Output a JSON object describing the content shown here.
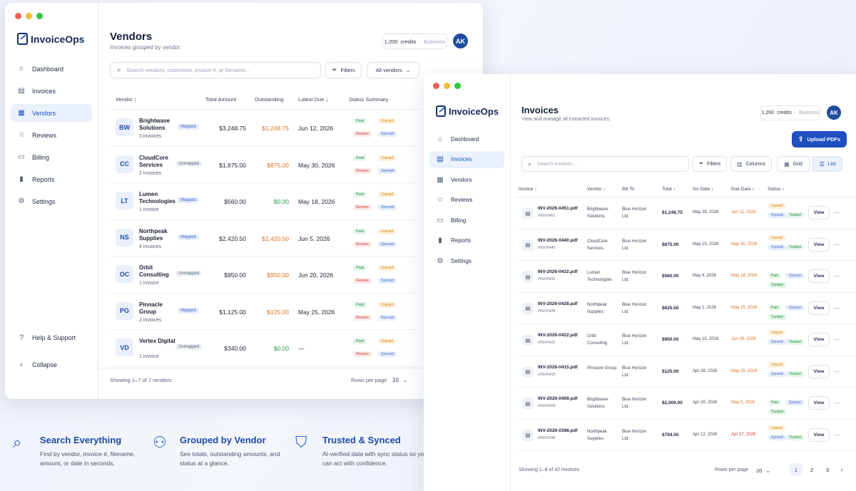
{
  "vendors_window": {
    "app_name": "InvoiceOps",
    "nav": [
      {
        "label": "Dashboard",
        "icon": "dashboard-icon"
      },
      {
        "label": "Invoices",
        "icon": "document-icon"
      },
      {
        "label": "Vendors",
        "icon": "building-icon",
        "active": true
      },
      {
        "label": "Reviews",
        "icon": "star-icon"
      },
      {
        "label": "Billing",
        "icon": "credit-card-icon"
      },
      {
        "label": "Reports",
        "icon": "bar-chart-icon"
      },
      {
        "label": "Settings",
        "icon": "gear-icon"
      }
    ],
    "help_label": "Help & Support",
    "collapse_label": "Collapse",
    "title": "Vendors",
    "subtitle": "Invoices grouped by vendor.",
    "credits": "1,200",
    "credits_unit": "credits",
    "tier": "Business",
    "avatar": "AK",
    "search_placeholder": "Search vendors, customers, invoice #, or filename...",
    "filters_label": "Filters",
    "vendor_filter": "All vendors",
    "columns": [
      "Vendor ↕",
      "Total Amount",
      "Outstanding",
      "Latest Due ↓",
      "Status Summary"
    ],
    "rows": [
      {
        "initials": "BW",
        "name": "Brightwave Solutions",
        "count": "3 invoices",
        "map": "Mapped",
        "total": "$3,248.75",
        "outstanding": "$1,248.75",
        "out_color": "orange",
        "due": "Jun 12, 2026",
        "s1": "Paid",
        "s1c": "paid",
        "s2": "Unpaid",
        "s3": "Review",
        "s4": "Synced"
      },
      {
        "initials": "CC",
        "name": "CloudCore Services",
        "count": "2 invoices",
        "map": "Unmapped",
        "total": "$1,875.00",
        "outstanding": "$875.00",
        "out_color": "orange",
        "due": "May 30, 2026",
        "s1": "Paid",
        "s1c": "paid",
        "s2": "Unpaid",
        "s3": "Review",
        "s4": "Synced"
      },
      {
        "initials": "LT",
        "name": "Lumen Technologies",
        "count": "1 invoice",
        "map": "Mapped",
        "total": "$560.00",
        "outstanding": "$0.00",
        "out_color": "green",
        "due": "May 18, 2026",
        "s1": "Paid",
        "s1c": "paid",
        "s2": "Unpaid",
        "s3": "Review",
        "s4": "Synced"
      },
      {
        "initials": "NS",
        "name": "Northpeak Supplies",
        "count": "4 invoices",
        "map": "Mapped",
        "total": "$2,420.50",
        "outstanding": "$1,420.50",
        "out_color": "orange",
        "due": "Jun 5, 2026",
        "s1": "Paid",
        "s1c": "paid",
        "s2": "Unpaid",
        "s3": "Review",
        "s4": "Synced"
      },
      {
        "initials": "OC",
        "name": "Orbit Consulting",
        "count": "1 invoice",
        "map": "Unmapped",
        "total": "$950.00",
        "outstanding": "$950.00",
        "out_color": "orange",
        "due": "Jun 20, 2026",
        "s1": "Paid",
        "s1c": "paid",
        "s2": "Unpaid",
        "s3": "Review",
        "s4": "Synced"
      },
      {
        "initials": "PG",
        "name": "Pinnacle Group",
        "count": "2 invoices",
        "map": "Mapped",
        "total": "$1,125.00",
        "outstanding": "$125.00",
        "out_color": "orange",
        "due": "May 25, 2026",
        "s1": "Paid",
        "s1c": "paid",
        "s2": "Unpaid",
        "s3": "Review",
        "s4": "Synced"
      },
      {
        "initials": "VD",
        "name": "Vertex Digital",
        "count": "1 invoice",
        "map": "Unmapped",
        "total": "$340.00",
        "outstanding": "$0.00",
        "out_color": "green",
        "due": "—",
        "s1": "Paid",
        "s1c": "paid",
        "s2": "Unpaid",
        "s3": "Review",
        "s4": "Synced"
      }
    ],
    "footer": "Showing 1–7 of 7 vendors",
    "rows_per_page_label": "Rows per page",
    "rows_per_page": "10"
  },
  "invoices_window": {
    "app_name": "InvoiceOps",
    "nav": [
      {
        "label": "Dashboard",
        "icon": "dashboard-icon"
      },
      {
        "label": "Invoices",
        "icon": "document-icon",
        "active": true
      },
      {
        "label": "Vendors",
        "icon": "building-icon"
      },
      {
        "label": "Reviews",
        "icon": "star-icon"
      },
      {
        "label": "Billing",
        "icon": "credit-card-icon"
      },
      {
        "label": "Reports",
        "icon": "bar-chart-icon"
      },
      {
        "label": "Settings",
        "icon": "gear-icon"
      }
    ],
    "title": "Invoices",
    "subtitle": "View and manage all extracted invoices.",
    "credits": "1,200",
    "credits_unit": "credits",
    "tier": "Business",
    "avatar": "AK",
    "upload_label": "Upload PDFs",
    "search_placeholder": "Search invoices...",
    "filters_label": "Filters",
    "columns_label": "Columns",
    "grid_label": "Grid",
    "list_label": "List",
    "columns": [
      "Invoice ↕",
      "Vendor ↕",
      "Bill To",
      "Total ↕",
      "Inv Date ↕",
      "Due Date ↕",
      "Status ↕"
    ],
    "rows": [
      {
        "file": "INV-2026-0451.pdf",
        "num": "#INV0451",
        "vendor": "Brightwave Solutions",
        "bill": "Blue Horizon Ltd.",
        "total": "$1,248.75",
        "inv_date": "May 28, 2026",
        "due": "Jun 12, 2026",
        "due_color": "orange",
        "st": [
          [
            "Unpaid",
            "unpaid"
          ],
          [
            "Synced",
            "synced"
          ],
          [
            "Trusted",
            "trusted"
          ]
        ]
      },
      {
        "file": "INV-2026-0440.pdf",
        "num": "#INV0440",
        "vendor": "CloudCore Services",
        "bill": "Blue Horizon Ltd.",
        "total": "$875.00",
        "inv_date": "May 15, 2026",
        "due": "May 30, 2026",
        "due_color": "orange",
        "st": [
          [
            "Unpaid",
            "unpaid"
          ],
          [
            "Synced",
            "synced"
          ],
          [
            "Trusted",
            "trusted"
          ]
        ]
      },
      {
        "file": "INV-2026-0432.pdf",
        "num": "#INV0432",
        "vendor": "Lumen Technologies",
        "bill": "Blue Horizon Ltd.",
        "total": "$560.00",
        "inv_date": "May 4, 2026",
        "due": "May 18, 2026",
        "due_color": "orange",
        "st": [
          [
            "Paid",
            "paid"
          ],
          [
            "Synced",
            "synced"
          ],
          [
            "Trusted",
            "trusted"
          ]
        ]
      },
      {
        "file": "INV-2026-0428.pdf",
        "num": "#INV0428",
        "vendor": "Northpeak Supplies",
        "bill": "Blue Horizon Ltd.",
        "total": "$625.50",
        "inv_date": "May 1, 2026",
        "due": "May 15, 2026",
        "due_color": "orange",
        "st": [
          [
            "Paid",
            "paid"
          ],
          [
            "Synced",
            "synced"
          ],
          [
            "Trusted",
            "trusted"
          ]
        ]
      },
      {
        "file": "INV-2026-0422.pdf",
        "num": "#INV0422",
        "vendor": "Orbit Consulting",
        "bill": "Blue Horizon Ltd.",
        "total": "$950.00",
        "inv_date": "May 10, 2026",
        "due": "Jun 20, 2026",
        "due_color": "orange",
        "st": [
          [
            "Unpaid",
            "unpaid"
          ],
          [
            "Synced",
            "synced"
          ],
          [
            "Trusted",
            "trusted"
          ]
        ]
      },
      {
        "file": "INV-2026-0415.pdf",
        "num": "#INV0415",
        "vendor": "Pinnacle Group",
        "bill": "Blue Horizon Ltd.",
        "total": "$125.00",
        "inv_date": "Apr 28, 2026",
        "due": "May 25, 2026",
        "due_color": "orange",
        "st": [
          [
            "Unpaid",
            "unpaid"
          ],
          [
            "Synced",
            "synced"
          ],
          [
            "Trusted",
            "trusted"
          ]
        ]
      },
      {
        "file": "INV-2026-0409.pdf",
        "num": "#INV0409",
        "vendor": "Brightwave Solutions",
        "bill": "Blue Horizon Ltd.",
        "total": "$2,000.00",
        "inv_date": "Apr 20, 2026",
        "due": "May 5, 2026",
        "due_color": "orange",
        "st": [
          [
            "Paid",
            "paid"
          ],
          [
            "Synced",
            "synced"
          ],
          [
            "Trusted",
            "trusted"
          ]
        ]
      },
      {
        "file": "INV-2026-0398.pdf",
        "num": "#INV0398",
        "vendor": "Northpeak Supplies",
        "bill": "Blue Horizon Ltd.",
        "total": "$794.50",
        "inv_date": "Apr 12, 2026",
        "due": "Apr 27, 2026",
        "due_color": "red",
        "st": [
          [
            "Unpaid",
            "unpaid"
          ],
          [
            "Synced",
            "synced"
          ],
          [
            "Trusted",
            "trusted"
          ]
        ]
      }
    ],
    "view_label": "View",
    "footer": "Showing 1–8 of 42 invoices",
    "rows_per_page_label": "Rows per page",
    "rows_per_page": "20",
    "pages": [
      "1",
      "2",
      "3"
    ]
  },
  "features": [
    {
      "icon": "search-icon",
      "title": "Search Everything",
      "text": "Find by vendor, invoice #, filename, amount, or date in seconds."
    },
    {
      "icon": "users-icon",
      "title": "Grouped by Vendor",
      "text": "See totals, outstanding amounts, and status at a glance."
    },
    {
      "icon": "shield-check-icon",
      "title": "Trusted & Synced",
      "text": "AI-verified data with sync status so you can act with confidence."
    }
  ],
  "colors": {
    "accent": "#1e4fbf",
    "orange": "#e26d1c",
    "green": "#1f9a45",
    "red": "#d9342b"
  }
}
